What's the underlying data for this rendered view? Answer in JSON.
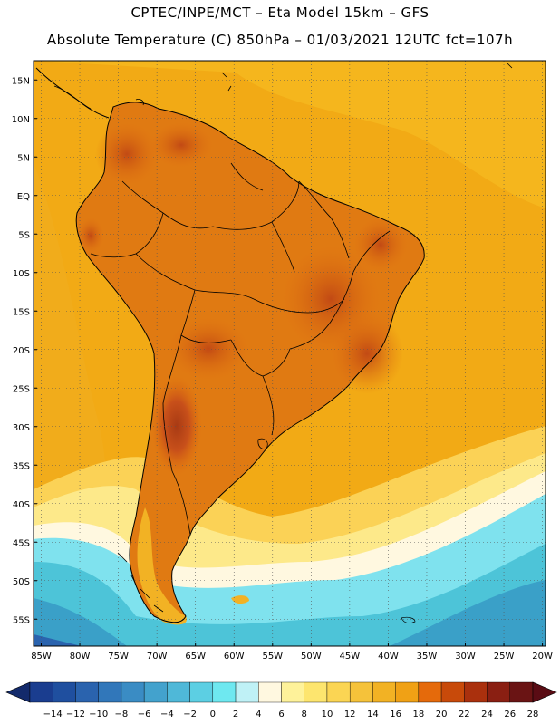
{
  "header": {
    "title": "CPTEC/INPE/MCT –  Eta Model 15km – GFS",
    "subtitle": "Absolute Temperature (C) 850hPa – 01/03/2021 12UTC fct=107h"
  },
  "map": {
    "lat_labels": [
      "15N",
      "10N",
      "5N",
      "EQ",
      "5S",
      "10S",
      "15S",
      "20S",
      "25S",
      "30S",
      "35S",
      "40S",
      "45S",
      "50S",
      "55S"
    ],
    "lon_labels": [
      "85W",
      "80W",
      "75W",
      "70W",
      "65W",
      "60W",
      "55W",
      "50W",
      "45W",
      "40W",
      "35W",
      "30W",
      "25W",
      "20W"
    ],
    "grid": "dotted",
    "land_colors": {
      "ocean_north": "#f5a31a",
      "ocean_warm": "#f0b020",
      "land_hot": "#e07010",
      "land_very_hot": "#c8501a",
      "ocean_south_light": "#fde98a",
      "ocean_cold": "#4dc4d8",
      "ocean_very_cold": "#3aa0c8"
    }
  },
  "colorbar": {
    "tick_labels": [
      "-14",
      "-12",
      "-10",
      "-8",
      "-6",
      "-4",
      "-2",
      "0",
      "2",
      "4",
      "6",
      "8",
      "10",
      "12",
      "14",
      "16",
      "18",
      "20",
      "22",
      "24",
      "26",
      "28"
    ],
    "colors": [
      "#1a3d8f",
      "#1f4f9f",
      "#2a63ae",
      "#3177ba",
      "#3a8cc4",
      "#43a2cd",
      "#4fb8d8",
      "#5ccfe3",
      "#6ee8f0",
      "#bff1f6",
      "#fff8e0",
      "#fef29a",
      "#fde56e",
      "#fbd553",
      "#f5c23a",
      "#f2b224",
      "#f0a115",
      "#e56a0b",
      "#c84a0a",
      "#aa300d",
      "#8a1f12",
      "#6a1414"
    ],
    "under_color": "#132a6b",
    "over_color": "#5a0c14"
  }
}
